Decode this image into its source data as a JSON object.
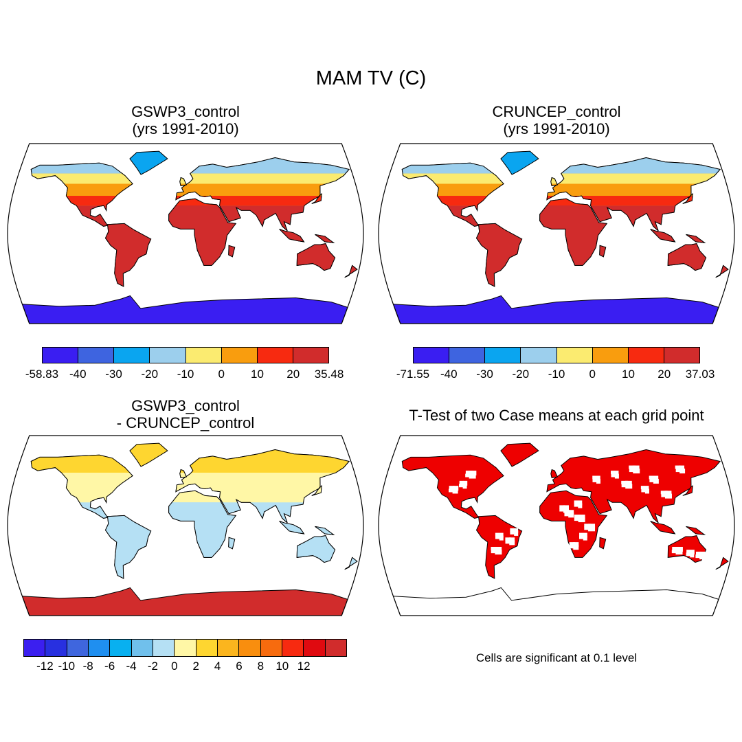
{
  "title": "MAM TV (C)",
  "panels": [
    {
      "id": "gswp3",
      "title_lines": [
        "GSWP3_control",
        "(yrs 1991-2010)"
      ],
      "colorbar": {
        "colors": [
          "#3a1ef2",
          "#3e64e0",
          "#0aa5f0",
          "#9ccfed",
          "#fbeb70",
          "#f99d0e",
          "#f72a10",
          "#d12c2c"
        ],
        "labels": [
          "-58.83",
          "-40",
          "-30",
          "-20",
          "-10",
          "0",
          "10",
          "20",
          "35.48"
        ]
      }
    },
    {
      "id": "cruncep",
      "title_lines": [
        "CRUNCEP_control",
        "(yrs 1991-2010)"
      ],
      "colorbar": {
        "colors": [
          "#3a1ef2",
          "#3e64e0",
          "#0aa5f0",
          "#9ccfed",
          "#fbeb70",
          "#f99d0e",
          "#f72a10",
          "#d12c2c"
        ],
        "labels": [
          "-71.55",
          "-40",
          "-30",
          "-20",
          "-10",
          "0",
          "10",
          "20",
          "37.03"
        ]
      }
    },
    {
      "id": "diff",
      "title_lines": [
        "GSWP3_control",
        "- CRUNCEP_control"
      ],
      "colorbar": {
        "colors": [
          "#3b1ff0",
          "#2830e0",
          "#3f66de",
          "#1f8ff0",
          "#08b0f0",
          "#70c0ec",
          "#b5e0f4",
          "#fff7a6",
          "#fed630",
          "#fbb51e",
          "#f98e0e",
          "#f76b0e",
          "#f72a10",
          "#e00a10",
          "#d12c2c"
        ],
        "labels": [
          "-12",
          "-10",
          "-8",
          "-6",
          "-4",
          "-2",
          "0",
          "2",
          "4",
          "6",
          "8",
          "10",
          "12"
        ]
      }
    },
    {
      "id": "ttest",
      "title_lines": [
        "T-Test of two Case means at each grid point"
      ],
      "note": "Cells are significant at 0.1 level"
    }
  ],
  "colors": {
    "ocean": "#ffffff",
    "coast": "#000000",
    "significant": "#ee0000"
  }
}
